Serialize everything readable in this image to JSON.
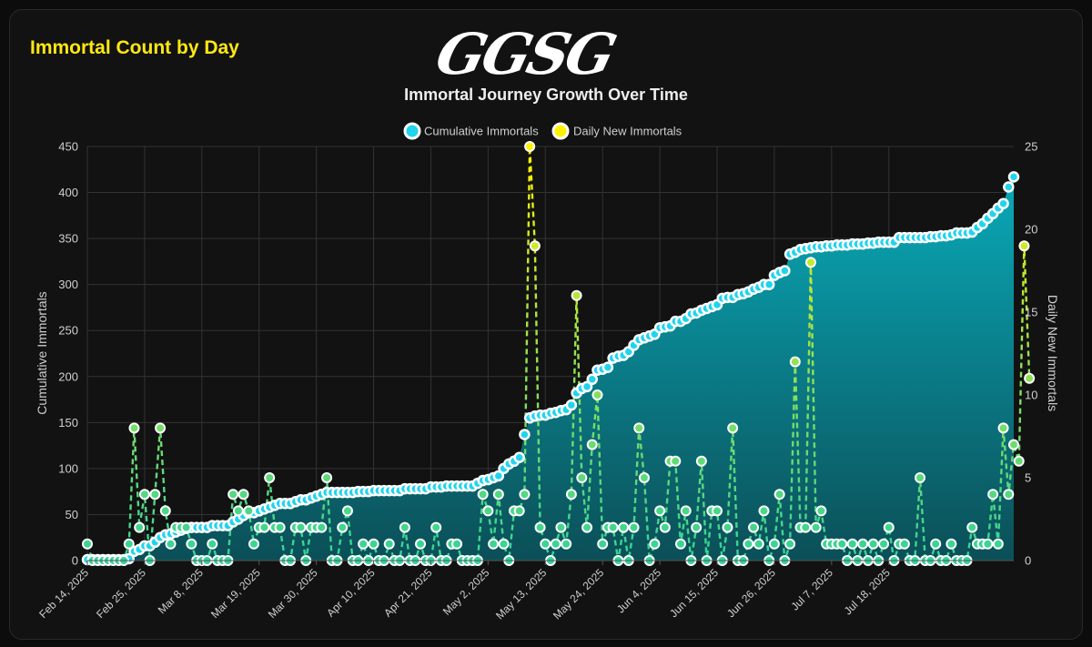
{
  "card": {
    "title": "Immortal Count by Day"
  },
  "logo": {
    "text": "GGSG"
  },
  "chart_data": {
    "type": "line",
    "title": "Immortal Journey Growth Over Time",
    "ylabel_left": "Cumulative Immortals",
    "ylabel_right": "Daily New Immortals",
    "y_left_lim": [
      0,
      450
    ],
    "y_left_ticks": [
      0,
      50,
      100,
      150,
      200,
      250,
      300,
      350,
      400,
      450
    ],
    "y_right_lim": [
      0,
      25
    ],
    "y_right_ticks": [
      0,
      5,
      10,
      15,
      20,
      25
    ],
    "start_date": "2025-02-14",
    "x_tick_labels": [
      "Feb 14, 2025",
      "Feb 25, 2025",
      "Mar 8, 2025",
      "Mar 19, 2025",
      "Mar 30, 2025",
      "Apr 10, 2025",
      "Apr 21, 2025",
      "May 2, 2025",
      "May 13, 2025",
      "May 24, 2025",
      "Jun 4, 2025",
      "Jun 15, 2025",
      "Jun 26, 2025",
      "Jul 7, 2025",
      "Jul 18, 2025"
    ],
    "grid": true,
    "legend_position": "top-center",
    "colors": {
      "cumulative_fill_top": "#0aa9b8",
      "cumulative_fill_bottom": "#0b4f57",
      "cumulative_point": "#22d3ee",
      "cumulative_border": "#ffffff",
      "daily_line_top": "#fff200",
      "daily_line_bottom": "#34d399",
      "grid": "#333333",
      "text": "#cfcfcf",
      "title": "#eeeeee"
    },
    "series": [
      {
        "name": "Cumulative Immortals",
        "axis": "left",
        "values": [
          1,
          1,
          1,
          1,
          1,
          1,
          1,
          1,
          2,
          10,
          12,
          16,
          16,
          20,
          25,
          28,
          29,
          31,
          33,
          35,
          36,
          36,
          36,
          36,
          38,
          38,
          38,
          38,
          42,
          45,
          49,
          52,
          52,
          54,
          56,
          58,
          60,
          62,
          62,
          62,
          64,
          66,
          66,
          68,
          70,
          72,
          74,
          74,
          74,
          74,
          74,
          74,
          75,
          75,
          75,
          76,
          76,
          76,
          76,
          76,
          76,
          78,
          78,
          78,
          78,
          78,
          80,
          80,
          80,
          81,
          81,
          81,
          81,
          81,
          81,
          84,
          87,
          88,
          90,
          92,
          100,
          105,
          108,
          112,
          137,
          155,
          157,
          158,
          158,
          160,
          161,
          163,
          164,
          169,
          182,
          187,
          189,
          197,
          207,
          208,
          210,
          220,
          222,
          223,
          227,
          234,
          240,
          242,
          244,
          246,
          253,
          254,
          255,
          260,
          260,
          263,
          268,
          269,
          272,
          274,
          276,
          278,
          285,
          286,
          286,
          289,
          290,
          292,
          295,
          297,
          300,
          300,
          310,
          313,
          315,
          333,
          335,
          338,
          339,
          340,
          341,
          341,
          342,
          342,
          343,
          343,
          343,
          344,
          344,
          344,
          345,
          345,
          346,
          346,
          346,
          346,
          351,
          351,
          351,
          351,
          351,
          351,
          352,
          352,
          353,
          353,
          354,
          356,
          356,
          356,
          357,
          362,
          366,
          372,
          377,
          383,
          388,
          406,
          417
        ],
        "points_shown": true
      },
      {
        "name": "Daily New Immortals",
        "axis": "right",
        "values": [
          1,
          0,
          0,
          0,
          0,
          0,
          0,
          0,
          1,
          8,
          2,
          4,
          0,
          4,
          8,
          3,
          1,
          2,
          2,
          2,
          1,
          0,
          0,
          0,
          1,
          0,
          0,
          0,
          4,
          3,
          4,
          3,
          1,
          2,
          2,
          5,
          2,
          2,
          0,
          0,
          2,
          2,
          0,
          2,
          2,
          2,
          5,
          0,
          0,
          2,
          3,
          0,
          0,
          1,
          0,
          1,
          0,
          0,
          1,
          0,
          0,
          2,
          0,
          0,
          1,
          0,
          0,
          2,
          0,
          0,
          1,
          1,
          0,
          0,
          0,
          0,
          4,
          3,
          1,
          4,
          1,
          0,
          3,
          3,
          4,
          25,
          19,
          2,
          1,
          0,
          1,
          2,
          1,
          4,
          16,
          5,
          2,
          7,
          10,
          1,
          2,
          2,
          0,
          2,
          0,
          2,
          8,
          5,
          0,
          1,
          3,
          2,
          6,
          6,
          1,
          3,
          0,
          2,
          6,
          0,
          3,
          3,
          0,
          2,
          8,
          0,
          0,
          1,
          2,
          1,
          3,
          0,
          1,
          4,
          0,
          1,
          12,
          2,
          2,
          18,
          2,
          3,
          1,
          1,
          1,
          1,
          0,
          1,
          0,
          1,
          0,
          1,
          0,
          1,
          2,
          0,
          1,
          1,
          0,
          0,
          5,
          0,
          0,
          1,
          0,
          0,
          1,
          0,
          0,
          0,
          2,
          1,
          1,
          1,
          4,
          1,
          8,
          4,
          7,
          6,
          19,
          11
        ],
        "points_shown": true
      }
    ]
  }
}
